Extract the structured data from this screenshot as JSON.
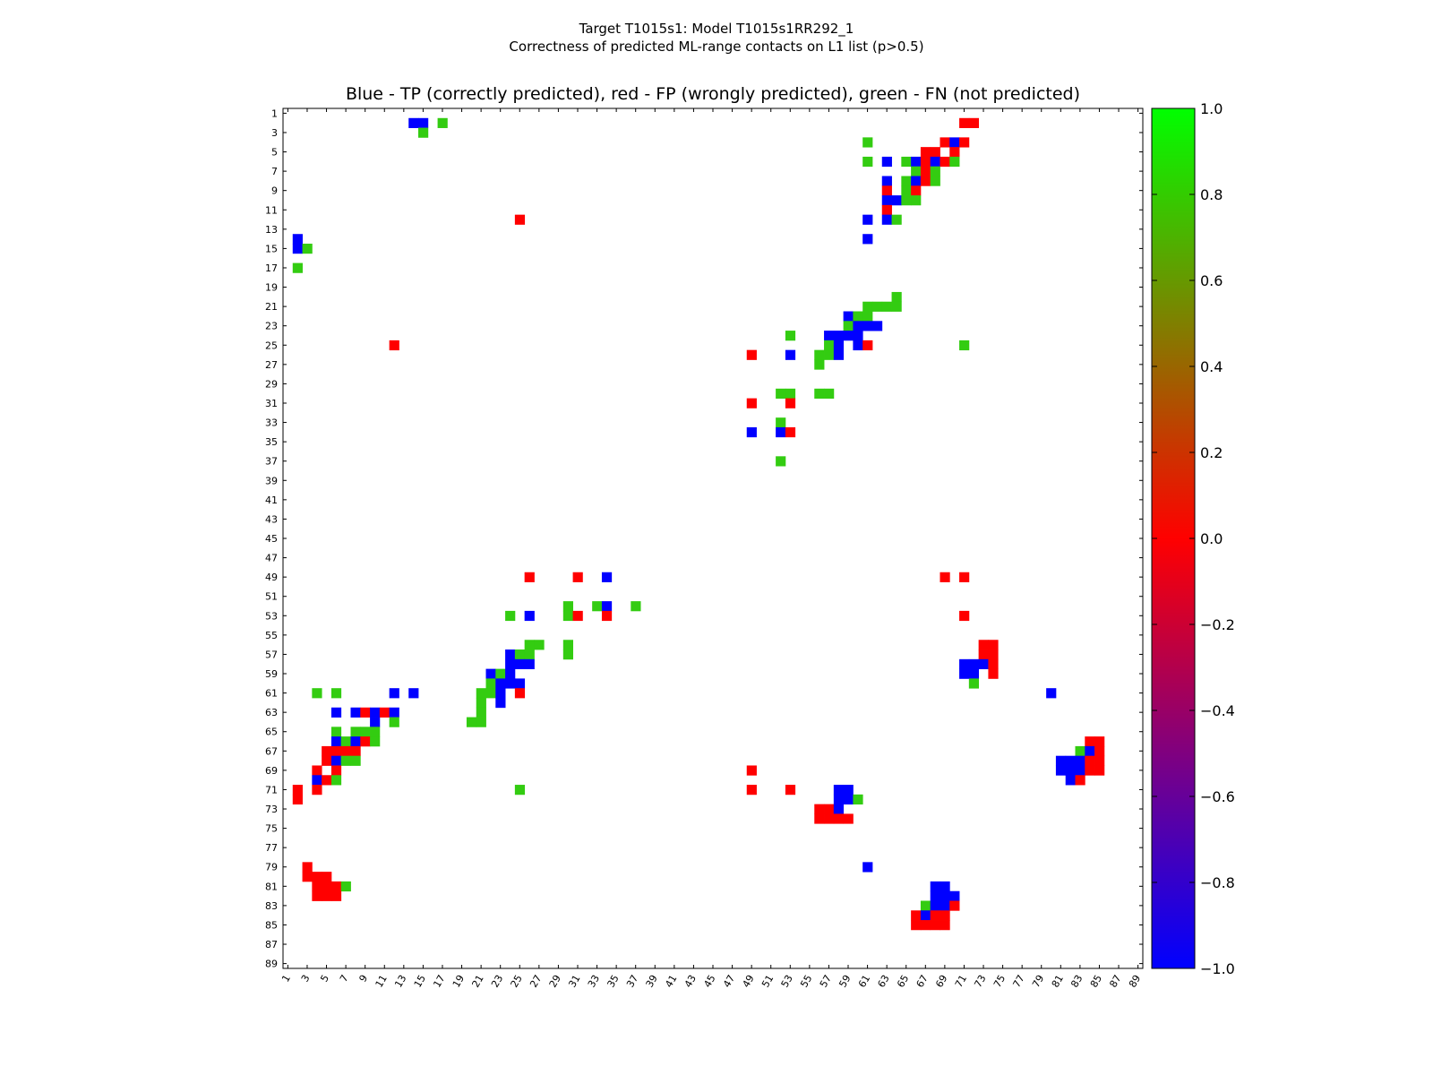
{
  "figure": {
    "title_line1": "Target T1015s1: Model T1015s1RR292_1",
    "title_line2": "Correctness of predicted ML-range contacts on L1 list (p>0.5)"
  },
  "chart_data": {
    "type": "heatmap",
    "title": "Blue - TP (correctly predicted), red - FP (wrongly predicted), green - FN (not predicted)",
    "xlabel": "",
    "ylabel": "",
    "xlim": [
      1,
      89
    ],
    "ylim": [
      1,
      89
    ],
    "y_axis_inverted": true,
    "tick_labels": [
      "1",
      "3",
      "5",
      "7",
      "9",
      "11",
      "13",
      "15",
      "17",
      "19",
      "21",
      "23",
      "25",
      "27",
      "29",
      "31",
      "33",
      "35",
      "37",
      "39",
      "41",
      "43",
      "45",
      "47",
      "49",
      "51",
      "53",
      "55",
      "57",
      "59",
      "61",
      "63",
      "65",
      "67",
      "69",
      "71",
      "73",
      "75",
      "77",
      "79",
      "81",
      "83",
      "85",
      "87",
      "89"
    ],
    "value_legend": {
      "tp": -1.0,
      "fp": 0.0,
      "fn": 0.8
    },
    "colorbar": {
      "min": -1.0,
      "max": 1.0,
      "ticks": [
        1.0,
        0.8,
        0.6,
        0.4,
        0.2,
        0.0,
        -0.2,
        -0.4,
        -0.6,
        -0.8,
        -1.0
      ],
      "tick_labels": [
        "1.0",
        "0.8",
        "0.6",
        "0.4",
        "0.2",
        "0.0",
        "−0.2",
        "−0.4",
        "−0.6",
        "−0.8",
        "−1.0"
      ],
      "stops": [
        "#0000ff",
        "#ff0000",
        "#00ff00"
      ]
    },
    "colors": {
      "tp": "#0000ff",
      "fp": "#ff0000",
      "fn": "#33cc11"
    },
    "cells": [
      {
        "x": 14,
        "y": 2,
        "v": -1
      },
      {
        "x": 15,
        "y": 2,
        "v": -1
      },
      {
        "x": 17,
        "y": 2,
        "v": 0.8
      },
      {
        "x": 15,
        "y": 3,
        "v": 0.8
      },
      {
        "x": 71,
        "y": 2,
        "v": 0
      },
      {
        "x": 72,
        "y": 2,
        "v": 0
      },
      {
        "x": 69,
        "y": 4,
        "v": 0
      },
      {
        "x": 70,
        "y": 4,
        "v": -1
      },
      {
        "x": 71,
        "y": 4,
        "v": 0
      },
      {
        "x": 61,
        "y": 4,
        "v": 0.8
      },
      {
        "x": 67,
        "y": 5,
        "v": 0
      },
      {
        "x": 68,
        "y": 5,
        "v": 0
      },
      {
        "x": 70,
        "y": 5,
        "v": 0
      },
      {
        "x": 61,
        "y": 6,
        "v": 0.8
      },
      {
        "x": 63,
        "y": 6,
        "v": -1
      },
      {
        "x": 65,
        "y": 6,
        "v": 0.8
      },
      {
        "x": 66,
        "y": 6,
        "v": -1
      },
      {
        "x": 67,
        "y": 6,
        "v": 0
      },
      {
        "x": 68,
        "y": 6,
        "v": -1
      },
      {
        "x": 69,
        "y": 6,
        "v": 0
      },
      {
        "x": 70,
        "y": 6,
        "v": 0.8
      },
      {
        "x": 66,
        "y": 7,
        "v": 0.8
      },
      {
        "x": 67,
        "y": 7,
        "v": 0
      },
      {
        "x": 68,
        "y": 7,
        "v": 0.8
      },
      {
        "x": 63,
        "y": 8,
        "v": -1
      },
      {
        "x": 65,
        "y": 8,
        "v": 0.8
      },
      {
        "x": 66,
        "y": 8,
        "v": -1
      },
      {
        "x": 67,
        "y": 8,
        "v": 0
      },
      {
        "x": 68,
        "y": 8,
        "v": 0.8
      },
      {
        "x": 63,
        "y": 9,
        "v": 0
      },
      {
        "x": 65,
        "y": 9,
        "v": 0.8
      },
      {
        "x": 66,
        "y": 9,
        "v": 0
      },
      {
        "x": 63,
        "y": 10,
        "v": -1
      },
      {
        "x": 64,
        "y": 10,
        "v": -1
      },
      {
        "x": 65,
        "y": 10,
        "v": 0.8
      },
      {
        "x": 66,
        "y": 10,
        "v": 0.8
      },
      {
        "x": 63,
        "y": 11,
        "v": 0
      },
      {
        "x": 25,
        "y": 12,
        "v": 0
      },
      {
        "x": 61,
        "y": 12,
        "v": -1
      },
      {
        "x": 63,
        "y": 12,
        "v": -1
      },
      {
        "x": 64,
        "y": 12,
        "v": 0.8
      },
      {
        "x": 61,
        "y": 14,
        "v": -1
      },
      {
        "x": 2,
        "y": 14,
        "v": -1
      },
      {
        "x": 2,
        "y": 15,
        "v": -1
      },
      {
        "x": 3,
        "y": 15,
        "v": 0.8
      },
      {
        "x": 2,
        "y": 17,
        "v": 0.8
      },
      {
        "x": 64,
        "y": 20,
        "v": 0.8
      },
      {
        "x": 61,
        "y": 21,
        "v": 0.8
      },
      {
        "x": 62,
        "y": 21,
        "v": 0.8
      },
      {
        "x": 63,
        "y": 21,
        "v": 0.8
      },
      {
        "x": 64,
        "y": 21,
        "v": 0.8
      },
      {
        "x": 59,
        "y": 22,
        "v": -1
      },
      {
        "x": 60,
        "y": 22,
        "v": 0.8
      },
      {
        "x": 61,
        "y": 22,
        "v": 0.8
      },
      {
        "x": 59,
        "y": 23,
        "v": 0.8
      },
      {
        "x": 60,
        "y": 23,
        "v": -1
      },
      {
        "x": 61,
        "y": 23,
        "v": -1
      },
      {
        "x": 62,
        "y": 23,
        "v": -1
      },
      {
        "x": 53,
        "y": 24,
        "v": 0.8
      },
      {
        "x": 57,
        "y": 24,
        "v": -1
      },
      {
        "x": 58,
        "y": 24,
        "v": -1
      },
      {
        "x": 59,
        "y": 24,
        "v": -1
      },
      {
        "x": 60,
        "y": 24,
        "v": -1
      },
      {
        "x": 12,
        "y": 25,
        "v": 0
      },
      {
        "x": 57,
        "y": 25,
        "v": 0.8
      },
      {
        "x": 58,
        "y": 25,
        "v": -1
      },
      {
        "x": 60,
        "y": 25,
        "v": -1
      },
      {
        "x": 61,
        "y": 25,
        "v": 0
      },
      {
        "x": 71,
        "y": 25,
        "v": 0.8
      },
      {
        "x": 49,
        "y": 26,
        "v": 0
      },
      {
        "x": 53,
        "y": 26,
        "v": -1
      },
      {
        "x": 56,
        "y": 26,
        "v": 0.8
      },
      {
        "x": 57,
        "y": 26,
        "v": 0.8
      },
      {
        "x": 58,
        "y": 26,
        "v": -1
      },
      {
        "x": 56,
        "y": 27,
        "v": 0.8
      },
      {
        "x": 52,
        "y": 30,
        "v": 0.8
      },
      {
        "x": 53,
        "y": 30,
        "v": 0.8
      },
      {
        "x": 56,
        "y": 30,
        "v": 0.8
      },
      {
        "x": 57,
        "y": 30,
        "v": 0.8
      },
      {
        "x": 49,
        "y": 31,
        "v": 0
      },
      {
        "x": 53,
        "y": 31,
        "v": 0
      },
      {
        "x": 52,
        "y": 33,
        "v": 0.8
      },
      {
        "x": 49,
        "y": 34,
        "v": -1
      },
      {
        "x": 52,
        "y": 34,
        "v": -1
      },
      {
        "x": 53,
        "y": 34,
        "v": 0
      },
      {
        "x": 52,
        "y": 37,
        "v": 0.8
      },
      {
        "x": 26,
        "y": 49,
        "v": 0
      },
      {
        "x": 31,
        "y": 49,
        "v": 0
      },
      {
        "x": 34,
        "y": 49,
        "v": -1
      },
      {
        "x": 69,
        "y": 49,
        "v": 0
      },
      {
        "x": 71,
        "y": 49,
        "v": 0
      },
      {
        "x": 30,
        "y": 52,
        "v": 0.8
      },
      {
        "x": 33,
        "y": 52,
        "v": 0.8
      },
      {
        "x": 34,
        "y": 52,
        "v": -1
      },
      {
        "x": 37,
        "y": 52,
        "v": 0.8
      },
      {
        "x": 24,
        "y": 53,
        "v": 0.8
      },
      {
        "x": 26,
        "y": 53,
        "v": -1
      },
      {
        "x": 30,
        "y": 53,
        "v": 0.8
      },
      {
        "x": 31,
        "y": 53,
        "v": 0
      },
      {
        "x": 34,
        "y": 53,
        "v": 0
      },
      {
        "x": 71,
        "y": 53,
        "v": 0
      },
      {
        "x": 26,
        "y": 56,
        "v": 0.8
      },
      {
        "x": 27,
        "y": 56,
        "v": 0.8
      },
      {
        "x": 30,
        "y": 56,
        "v": 0.8
      },
      {
        "x": 73,
        "y": 56,
        "v": 0
      },
      {
        "x": 74,
        "y": 56,
        "v": 0
      },
      {
        "x": 24,
        "y": 57,
        "v": -1
      },
      {
        "x": 25,
        "y": 57,
        "v": 0.8
      },
      {
        "x": 26,
        "y": 57,
        "v": 0.8
      },
      {
        "x": 30,
        "y": 57,
        "v": 0.8
      },
      {
        "x": 73,
        "y": 57,
        "v": 0
      },
      {
        "x": 74,
        "y": 57,
        "v": 0
      },
      {
        "x": 24,
        "y": 58,
        "v": -1
      },
      {
        "x": 25,
        "y": 58,
        "v": -1
      },
      {
        "x": 26,
        "y": 58,
        "v": -1
      },
      {
        "x": 71,
        "y": 58,
        "v": -1
      },
      {
        "x": 72,
        "y": 58,
        "v": -1
      },
      {
        "x": 73,
        "y": 58,
        "v": -1
      },
      {
        "x": 74,
        "y": 58,
        "v": 0
      },
      {
        "x": 22,
        "y": 59,
        "v": -1
      },
      {
        "x": 23,
        "y": 59,
        "v": 0.8
      },
      {
        "x": 24,
        "y": 59,
        "v": -1
      },
      {
        "x": 71,
        "y": 59,
        "v": -1
      },
      {
        "x": 72,
        "y": 59,
        "v": -1
      },
      {
        "x": 74,
        "y": 59,
        "v": 0
      },
      {
        "x": 22,
        "y": 60,
        "v": 0.8
      },
      {
        "x": 23,
        "y": 60,
        "v": -1
      },
      {
        "x": 24,
        "y": 60,
        "v": -1
      },
      {
        "x": 25,
        "y": 60,
        "v": -1
      },
      {
        "x": 72,
        "y": 60,
        "v": 0.8
      },
      {
        "x": 4,
        "y": 61,
        "v": 0.8
      },
      {
        "x": 6,
        "y": 61,
        "v": 0.8
      },
      {
        "x": 12,
        "y": 61,
        "v": -1
      },
      {
        "x": 14,
        "y": 61,
        "v": -1
      },
      {
        "x": 21,
        "y": 61,
        "v": 0.8
      },
      {
        "x": 22,
        "y": 61,
        "v": 0.8
      },
      {
        "x": 23,
        "y": 61,
        "v": -1
      },
      {
        "x": 25,
        "y": 61,
        "v": 0
      },
      {
        "x": 80,
        "y": 61,
        "v": -1
      },
      {
        "x": 21,
        "y": 62,
        "v": 0.8
      },
      {
        "x": 23,
        "y": 62,
        "v": -1
      },
      {
        "x": 6,
        "y": 63,
        "v": -1
      },
      {
        "x": 8,
        "y": 63,
        "v": -1
      },
      {
        "x": 9,
        "y": 63,
        "v": 0
      },
      {
        "x": 10,
        "y": 63,
        "v": -1
      },
      {
        "x": 11,
        "y": 63,
        "v": 0
      },
      {
        "x": 12,
        "y": 63,
        "v": -1
      },
      {
        "x": 21,
        "y": 63,
        "v": 0.8
      },
      {
        "x": 10,
        "y": 64,
        "v": -1
      },
      {
        "x": 12,
        "y": 64,
        "v": 0.8
      },
      {
        "x": 20,
        "y": 64,
        "v": 0.8
      },
      {
        "x": 21,
        "y": 64,
        "v": 0.8
      },
      {
        "x": 6,
        "y": 65,
        "v": 0.8
      },
      {
        "x": 8,
        "y": 65,
        "v": 0.8
      },
      {
        "x": 9,
        "y": 65,
        "v": 0.8
      },
      {
        "x": 10,
        "y": 65,
        "v": 0.8
      },
      {
        "x": 6,
        "y": 66,
        "v": -1
      },
      {
        "x": 7,
        "y": 66,
        "v": 0.8
      },
      {
        "x": 8,
        "y": 66,
        "v": -1
      },
      {
        "x": 9,
        "y": 66,
        "v": 0
      },
      {
        "x": 10,
        "y": 66,
        "v": 0.8
      },
      {
        "x": 84,
        "y": 66,
        "v": 0
      },
      {
        "x": 85,
        "y": 66,
        "v": 0
      },
      {
        "x": 5,
        "y": 67,
        "v": 0
      },
      {
        "x": 6,
        "y": 67,
        "v": 0
      },
      {
        "x": 7,
        "y": 67,
        "v": 0
      },
      {
        "x": 8,
        "y": 67,
        "v": 0
      },
      {
        "x": 83,
        "y": 67,
        "v": 0.8
      },
      {
        "x": 84,
        "y": 67,
        "v": -1
      },
      {
        "x": 85,
        "y": 67,
        "v": 0
      },
      {
        "x": 5,
        "y": 68,
        "v": 0
      },
      {
        "x": 6,
        "y": 68,
        "v": -1
      },
      {
        "x": 7,
        "y": 68,
        "v": 0.8
      },
      {
        "x": 8,
        "y": 68,
        "v": 0.8
      },
      {
        "x": 81,
        "y": 68,
        "v": -1
      },
      {
        "x": 82,
        "y": 68,
        "v": -1
      },
      {
        "x": 83,
        "y": 68,
        "v": -1
      },
      {
        "x": 84,
        "y": 68,
        "v": 0
      },
      {
        "x": 85,
        "y": 68,
        "v": 0
      },
      {
        "x": 4,
        "y": 69,
        "v": 0
      },
      {
        "x": 6,
        "y": 69,
        "v": 0
      },
      {
        "x": 49,
        "y": 69,
        "v": 0
      },
      {
        "x": 81,
        "y": 69,
        "v": -1
      },
      {
        "x": 82,
        "y": 69,
        "v": -1
      },
      {
        "x": 83,
        "y": 69,
        "v": -1
      },
      {
        "x": 84,
        "y": 69,
        "v": 0
      },
      {
        "x": 85,
        "y": 69,
        "v": 0
      },
      {
        "x": 4,
        "y": 70,
        "v": -1
      },
      {
        "x": 5,
        "y": 70,
        "v": 0
      },
      {
        "x": 6,
        "y": 70,
        "v": 0.8
      },
      {
        "x": 82,
        "y": 70,
        "v": -1
      },
      {
        "x": 83,
        "y": 70,
        "v": 0
      },
      {
        "x": 2,
        "y": 71,
        "v": 0
      },
      {
        "x": 4,
        "y": 71,
        "v": 0
      },
      {
        "x": 25,
        "y": 71,
        "v": 0.8
      },
      {
        "x": 49,
        "y": 71,
        "v": 0
      },
      {
        "x": 53,
        "y": 71,
        "v": 0
      },
      {
        "x": 58,
        "y": 71,
        "v": -1
      },
      {
        "x": 59,
        "y": 71,
        "v": -1
      },
      {
        "x": 2,
        "y": 72,
        "v": 0
      },
      {
        "x": 58,
        "y": 72,
        "v": -1
      },
      {
        "x": 59,
        "y": 72,
        "v": -1
      },
      {
        "x": 60,
        "y": 72,
        "v": 0.8
      },
      {
        "x": 56,
        "y": 73,
        "v": 0
      },
      {
        "x": 57,
        "y": 73,
        "v": 0
      },
      {
        "x": 58,
        "y": 73,
        "v": -1
      },
      {
        "x": 56,
        "y": 74,
        "v": 0
      },
      {
        "x": 57,
        "y": 74,
        "v": 0
      },
      {
        "x": 58,
        "y": 74,
        "v": 0
      },
      {
        "x": 59,
        "y": 74,
        "v": 0
      },
      {
        "x": 61,
        "y": 79,
        "v": -1
      },
      {
        "x": 3,
        "y": 79,
        "v": 0
      },
      {
        "x": 3,
        "y": 80,
        "v": 0
      },
      {
        "x": 4,
        "y": 80,
        "v": 0
      },
      {
        "x": 5,
        "y": 80,
        "v": 0
      },
      {
        "x": 4,
        "y": 81,
        "v": 0
      },
      {
        "x": 5,
        "y": 81,
        "v": 0
      },
      {
        "x": 6,
        "y": 81,
        "v": 0
      },
      {
        "x": 7,
        "y": 81,
        "v": 0.8
      },
      {
        "x": 68,
        "y": 81,
        "v": -1
      },
      {
        "x": 69,
        "y": 81,
        "v": -1
      },
      {
        "x": 4,
        "y": 82,
        "v": 0
      },
      {
        "x": 5,
        "y": 82,
        "v": 0
      },
      {
        "x": 6,
        "y": 82,
        "v": 0
      },
      {
        "x": 68,
        "y": 82,
        "v": -1
      },
      {
        "x": 69,
        "y": 82,
        "v": -1
      },
      {
        "x": 70,
        "y": 82,
        "v": -1
      },
      {
        "x": 67,
        "y": 83,
        "v": 0.8
      },
      {
        "x": 68,
        "y": 83,
        "v": -1
      },
      {
        "x": 69,
        "y": 83,
        "v": -1
      },
      {
        "x": 70,
        "y": 83,
        "v": 0
      },
      {
        "x": 66,
        "y": 84,
        "v": 0
      },
      {
        "x": 67,
        "y": 84,
        "v": -1
      },
      {
        "x": 68,
        "y": 84,
        "v": 0
      },
      {
        "x": 69,
        "y": 84,
        "v": 0
      },
      {
        "x": 66,
        "y": 85,
        "v": 0
      },
      {
        "x": 67,
        "y": 85,
        "v": 0
      },
      {
        "x": 68,
        "y": 85,
        "v": 0
      },
      {
        "x": 69,
        "y": 85,
        "v": 0
      }
    ]
  }
}
